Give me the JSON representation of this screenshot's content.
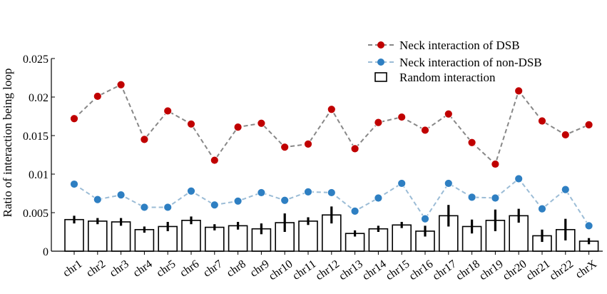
{
  "chart_data": {
    "type": "line",
    "title": "",
    "xlabel": "",
    "ylabel": "Ratio of interaction being loop",
    "ylim": [
      0,
      0.025
    ],
    "yticks": [
      {
        "value": 0,
        "label": "0"
      },
      {
        "value": 0.005,
        "label": "0.005"
      },
      {
        "value": 0.01,
        "label": "0.01"
      },
      {
        "value": 0.015,
        "label": "0.015"
      },
      {
        "value": 0.02,
        "label": "0.02"
      },
      {
        "value": 0.025,
        "label": "0.025"
      }
    ],
    "grid": false,
    "legend_position": "top-right",
    "categories": [
      "chr1",
      "chr2",
      "chr3",
      "chr4",
      "chr5",
      "chr6",
      "chr7",
      "chr8",
      "chr9",
      "chr10",
      "chr11",
      "chr12",
      "chr13",
      "chr14",
      "chr15",
      "chr16",
      "chr17",
      "chr18",
      "chr19",
      "chr20",
      "chr21",
      "chr22",
      "chrX"
    ],
    "series": [
      {
        "name": "Neck interaction of DSB",
        "kind": "line",
        "color": "#c00000",
        "line_color": "#888888",
        "values": [
          0.0172,
          0.0201,
          0.0216,
          0.0145,
          0.0182,
          0.0165,
          0.0118,
          0.0161,
          0.0166,
          0.0135,
          0.0139,
          0.0184,
          0.0133,
          0.0167,
          0.0174,
          0.0157,
          0.0178,
          0.0141,
          0.0113,
          0.0208,
          0.0169,
          0.0151,
          0.0164
        ]
      },
      {
        "name": "Neck interaction of non-DSB",
        "kind": "line",
        "color": "#2e7fc2",
        "line_color": "#9bbcd6",
        "values": [
          0.0087,
          0.0067,
          0.0073,
          0.0057,
          0.0057,
          0.0078,
          0.006,
          0.0065,
          0.0076,
          0.0066,
          0.0077,
          0.0076,
          0.0052,
          0.0069,
          0.0088,
          0.0042,
          0.0088,
          0.007,
          0.0069,
          0.0094,
          0.0055,
          0.008,
          0.0033
        ]
      },
      {
        "name": "Random interaction",
        "kind": "bar",
        "color": "#ffffff",
        "values": [
          0.0041,
          0.0039,
          0.0038,
          0.0028,
          0.0032,
          0.004,
          0.0031,
          0.0033,
          0.0029,
          0.0037,
          0.0039,
          0.0047,
          0.0023,
          0.0029,
          0.0034,
          0.0026,
          0.0046,
          0.0032,
          0.004,
          0.0046,
          0.002,
          0.0028,
          0.0013
        ],
        "error": [
          0.0005,
          0.0004,
          0.0005,
          0.0004,
          0.0006,
          0.0005,
          0.0004,
          0.0005,
          0.0007,
          0.0012,
          0.0005,
          0.0011,
          0.0004,
          0.0004,
          0.0004,
          0.0007,
          0.0014,
          0.0009,
          0.0014,
          0.0009,
          0.0008,
          0.0014,
          0.0004
        ]
      }
    ]
  }
}
